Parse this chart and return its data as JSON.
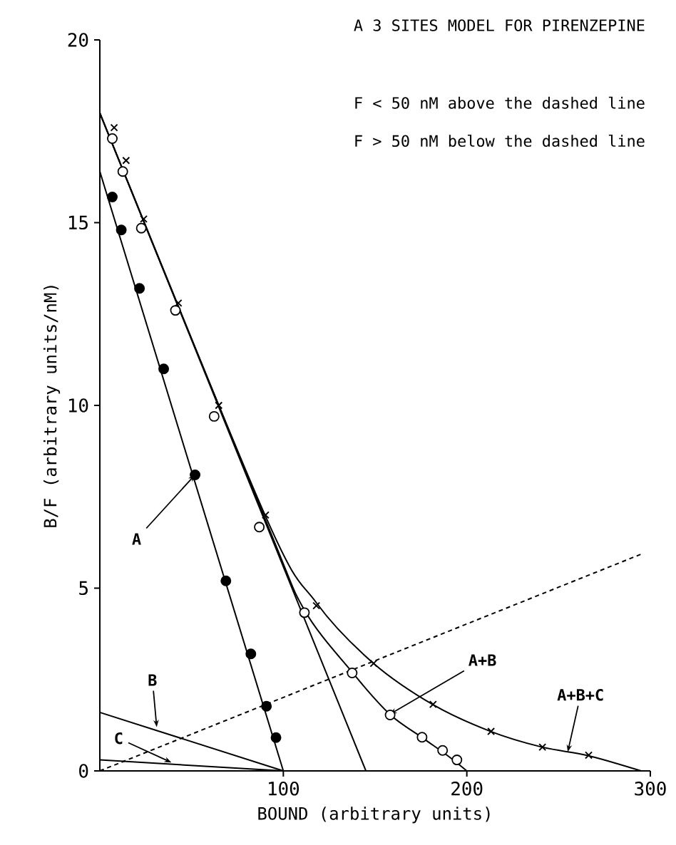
{
  "chart_data": {
    "type": "scatter",
    "title": "A 3 SITES MODEL FOR PIRENZEPINE",
    "xlabel": "BOUND (arbitrary units)",
    "ylabel": "B/F (arbitrary units/nM)",
    "xlim": [
      0,
      300
    ],
    "ylim": [
      0,
      20
    ],
    "xticks": [
      100,
      200,
      300
    ],
    "yticks": [
      0,
      5,
      10,
      15,
      20
    ],
    "series": [
      {
        "marker": "circle",
        "color": "#000000",
        "x": [
          6.8,
          11.7,
          21.6,
          34.8,
          51.9,
          68.7,
          82.3,
          90.8,
          96
        ],
        "values": [
          15.7,
          14.8,
          13.2,
          11.0,
          8.1,
          5.2,
          3.2,
          1.77,
          0.91
        ]
      },
      {
        "marker": "circle",
        "color": "#ffffff",
        "x": [
          6.8,
          12.5,
          22.6,
          41.2,
          62.3,
          86.9,
          111.5,
          137.5,
          158.2,
          175.6,
          186.8,
          194.6
        ],
        "values": [
          17.3,
          16.4,
          14.85,
          12.6,
          9.7,
          6.67,
          4.33,
          2.68,
          1.53,
          0.92,
          0.56,
          0.3
        ]
      },
      {
        "marker": "cross",
        "color": "#000000",
        "x": [
          7.8,
          14.3,
          23.9,
          42.8,
          64.8,
          90.3,
          118,
          149.2,
          181.6,
          213.2,
          241.2,
          266.4
        ],
        "values": [
          17.6,
          16.7,
          15.1,
          12.8,
          10.0,
          7.0,
          4.52,
          2.94,
          1.82,
          1.08,
          0.65,
          0.43
        ]
      },
      {
        "type": "line",
        "line_style": "solid",
        "color": "#000000",
        "x": [
          0,
          100
        ],
        "values": [
          16.4,
          0
        ]
      },
      {
        "type": "line",
        "line_style": "solid",
        "color": "#000000",
        "x": [
          0,
          145
        ],
        "values": [
          18.0,
          0
        ]
      },
      {
        "type": "line",
        "line_style": "solid",
        "color": "#000000",
        "x": [
          0,
          90,
          111.5,
          137.5,
          158,
          176,
          190,
          200
        ],
        "values": [
          18.0,
          6.9,
          4.4,
          2.7,
          1.55,
          0.9,
          0.4,
          0
        ]
      },
      {
        "type": "line",
        "line_style": "solid",
        "color": "#000000",
        "x": [
          0,
          90,
          118,
          149,
          182,
          213,
          241,
          266,
          295
        ],
        "values": [
          18.0,
          7.0,
          4.6,
          2.95,
          1.8,
          1.08,
          0.65,
          0.42,
          0
        ]
      },
      {
        "type": "line",
        "line_style": "solid",
        "color": "#000000",
        "x": [
          0,
          100
        ],
        "values": [
          1.6,
          0
        ]
      },
      {
        "type": "line",
        "line_style": "solid",
        "color": "#000000",
        "x": [
          0,
          100
        ],
        "values": [
          0.3,
          0
        ]
      },
      {
        "type": "line",
        "line_style": "dashed",
        "color": "#000000",
        "x": [
          0,
          296
        ],
        "values": [
          0,
          5.95
        ]
      }
    ],
    "annotations": [
      "F < 50 nM above the dashed line",
      "F > 50 nM below the dashed line",
      {
        "text": "A",
        "x": 51.9,
        "y": 8.1
      },
      {
        "text": "B",
        "x": 31,
        "y": 1.2
      },
      {
        "text": "C",
        "x": 39,
        "y": 0.23
      },
      {
        "text": "A+B",
        "x": 158,
        "y": 1.55
      },
      {
        "text": "A+B+C",
        "x": 255,
        "y": 0.52
      }
    ]
  }
}
